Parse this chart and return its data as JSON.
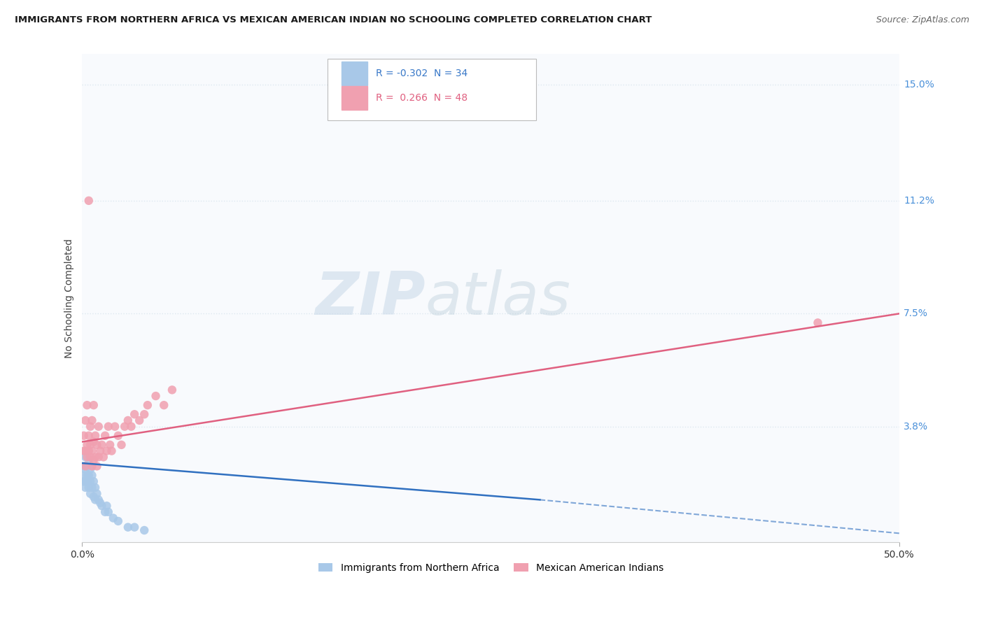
{
  "title": "IMMIGRANTS FROM NORTHERN AFRICA VS MEXICAN AMERICAN INDIAN NO SCHOOLING COMPLETED CORRELATION CHART",
  "source": "Source: ZipAtlas.com",
  "ylabel": "No Schooling Completed",
  "ytick_vals_right": [
    0.038,
    0.075,
    0.112,
    0.15
  ],
  "ytick_labels_right": [
    "3.8%",
    "7.5%",
    "11.2%",
    "15.0%"
  ],
  "xlim": [
    0.0,
    0.5
  ],
  "ylim": [
    0.0,
    0.16
  ],
  "watermark_zip": "ZIP",
  "watermark_atlas": "atlas",
  "legend_labels_bottom": [
    "Immigrants from Northern Africa",
    "Mexican American Indians"
  ],
  "series1_name": "Immigrants from Northern Africa",
  "series1_color": "#a8c8e8",
  "series1_R": -0.302,
  "series1_N": 34,
  "series1_x": [
    0.001,
    0.001,
    0.001,
    0.002,
    0.002,
    0.002,
    0.002,
    0.003,
    0.003,
    0.003,
    0.004,
    0.004,
    0.004,
    0.005,
    0.005,
    0.005,
    0.006,
    0.006,
    0.007,
    0.007,
    0.008,
    0.008,
    0.009,
    0.01,
    0.011,
    0.012,
    0.014,
    0.015,
    0.016,
    0.019,
    0.022,
    0.028,
    0.032,
    0.038
  ],
  "series1_y": [
    0.02,
    0.022,
    0.025,
    0.018,
    0.02,
    0.024,
    0.028,
    0.02,
    0.022,
    0.025,
    0.018,
    0.022,
    0.026,
    0.016,
    0.02,
    0.024,
    0.018,
    0.022,
    0.015,
    0.02,
    0.014,
    0.018,
    0.016,
    0.014,
    0.013,
    0.012,
    0.01,
    0.012,
    0.01,
    0.008,
    0.007,
    0.005,
    0.005,
    0.004
  ],
  "series2_name": "Mexican American Indians",
  "series2_color": "#f0a0b0",
  "series2_R": 0.266,
  "series2_N": 48,
  "series2_x": [
    0.001,
    0.001,
    0.002,
    0.002,
    0.002,
    0.003,
    0.003,
    0.003,
    0.004,
    0.004,
    0.004,
    0.005,
    0.005,
    0.005,
    0.006,
    0.006,
    0.006,
    0.007,
    0.007,
    0.007,
    0.008,
    0.008,
    0.009,
    0.009,
    0.01,
    0.01,
    0.011,
    0.012,
    0.013,
    0.014,
    0.015,
    0.016,
    0.017,
    0.018,
    0.02,
    0.022,
    0.024,
    0.026,
    0.028,
    0.03,
    0.032,
    0.035,
    0.038,
    0.04,
    0.045,
    0.05,
    0.055,
    0.45
  ],
  "series2_y": [
    0.03,
    0.035,
    0.025,
    0.03,
    0.04,
    0.028,
    0.032,
    0.045,
    0.03,
    0.035,
    0.112,
    0.028,
    0.032,
    0.038,
    0.025,
    0.03,
    0.04,
    0.027,
    0.033,
    0.045,
    0.028,
    0.035,
    0.025,
    0.032,
    0.028,
    0.038,
    0.03,
    0.032,
    0.028,
    0.035,
    0.03,
    0.038,
    0.032,
    0.03,
    0.038,
    0.035,
    0.032,
    0.038,
    0.04,
    0.038,
    0.042,
    0.04,
    0.042,
    0.045,
    0.048,
    0.045,
    0.05,
    0.072
  ],
  "trendline1_color": "#3070c0",
  "trendline2_color": "#e06080",
  "trendline1_x0": 0.0,
  "trendline1_y0": 0.026,
  "trendline1_x1": 0.28,
  "trendline1_y1": 0.014,
  "trendline1_dash_x1": 0.5,
  "trendline1_dash_y1": 0.003,
  "trendline2_x0": 0.0,
  "trendline2_y0": 0.033,
  "trendline2_x1": 0.5,
  "trendline2_y1": 0.075,
  "grid_color": "#dde8f0",
  "grid_style": "dotted",
  "background_color": "#ffffff",
  "plot_bg_color": "#f8fafd"
}
